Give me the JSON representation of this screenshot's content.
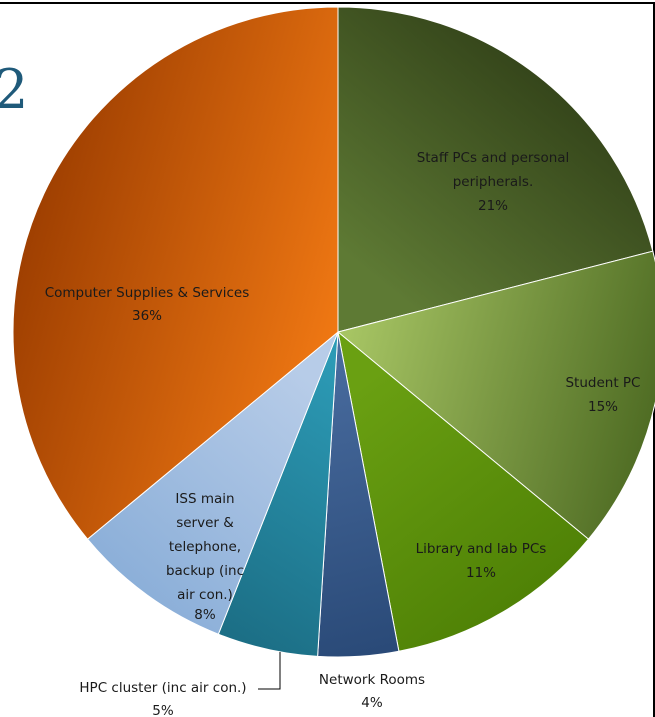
{
  "chart_data": {
    "type": "pie",
    "title": "",
    "slices": [
      {
        "label": "Staff PCs and personal peripherals.",
        "value": 21,
        "pct_label": "21%",
        "colors": [
          "#5e7a34",
          "#2c3a15"
        ]
      },
      {
        "label": "Student PC",
        "value": 15,
        "pct_label": "15%",
        "colors": [
          "#a6c463",
          "#4d6a22"
        ]
      },
      {
        "label": "Library and lab PCs",
        "value": 11,
        "pct_label": "11%",
        "colors": [
          "#6aa012",
          "#4d7f05"
        ]
      },
      {
        "label": "Network Rooms",
        "value": 4,
        "pct_label": "4%",
        "colors": [
          "#4a6da0",
          "#2a4a78"
        ]
      },
      {
        "label": "HPC cluster (inc air con.)",
        "value": 5,
        "pct_label": "5%",
        "colors": [
          "#2c9ab5",
          "#1c6f86"
        ]
      },
      {
        "label": "ISS main server & telephone, backup (inc air con.)",
        "value": 8,
        "pct_label": "8%",
        "colors": [
          "#b7cce8",
          "#8aaed8"
        ]
      },
      {
        "label": "Computer Supplies & Services",
        "value": 36,
        "pct_label": "36%",
        "colors": [
          "#f07813",
          "#9a3c00"
        ]
      }
    ]
  }
}
